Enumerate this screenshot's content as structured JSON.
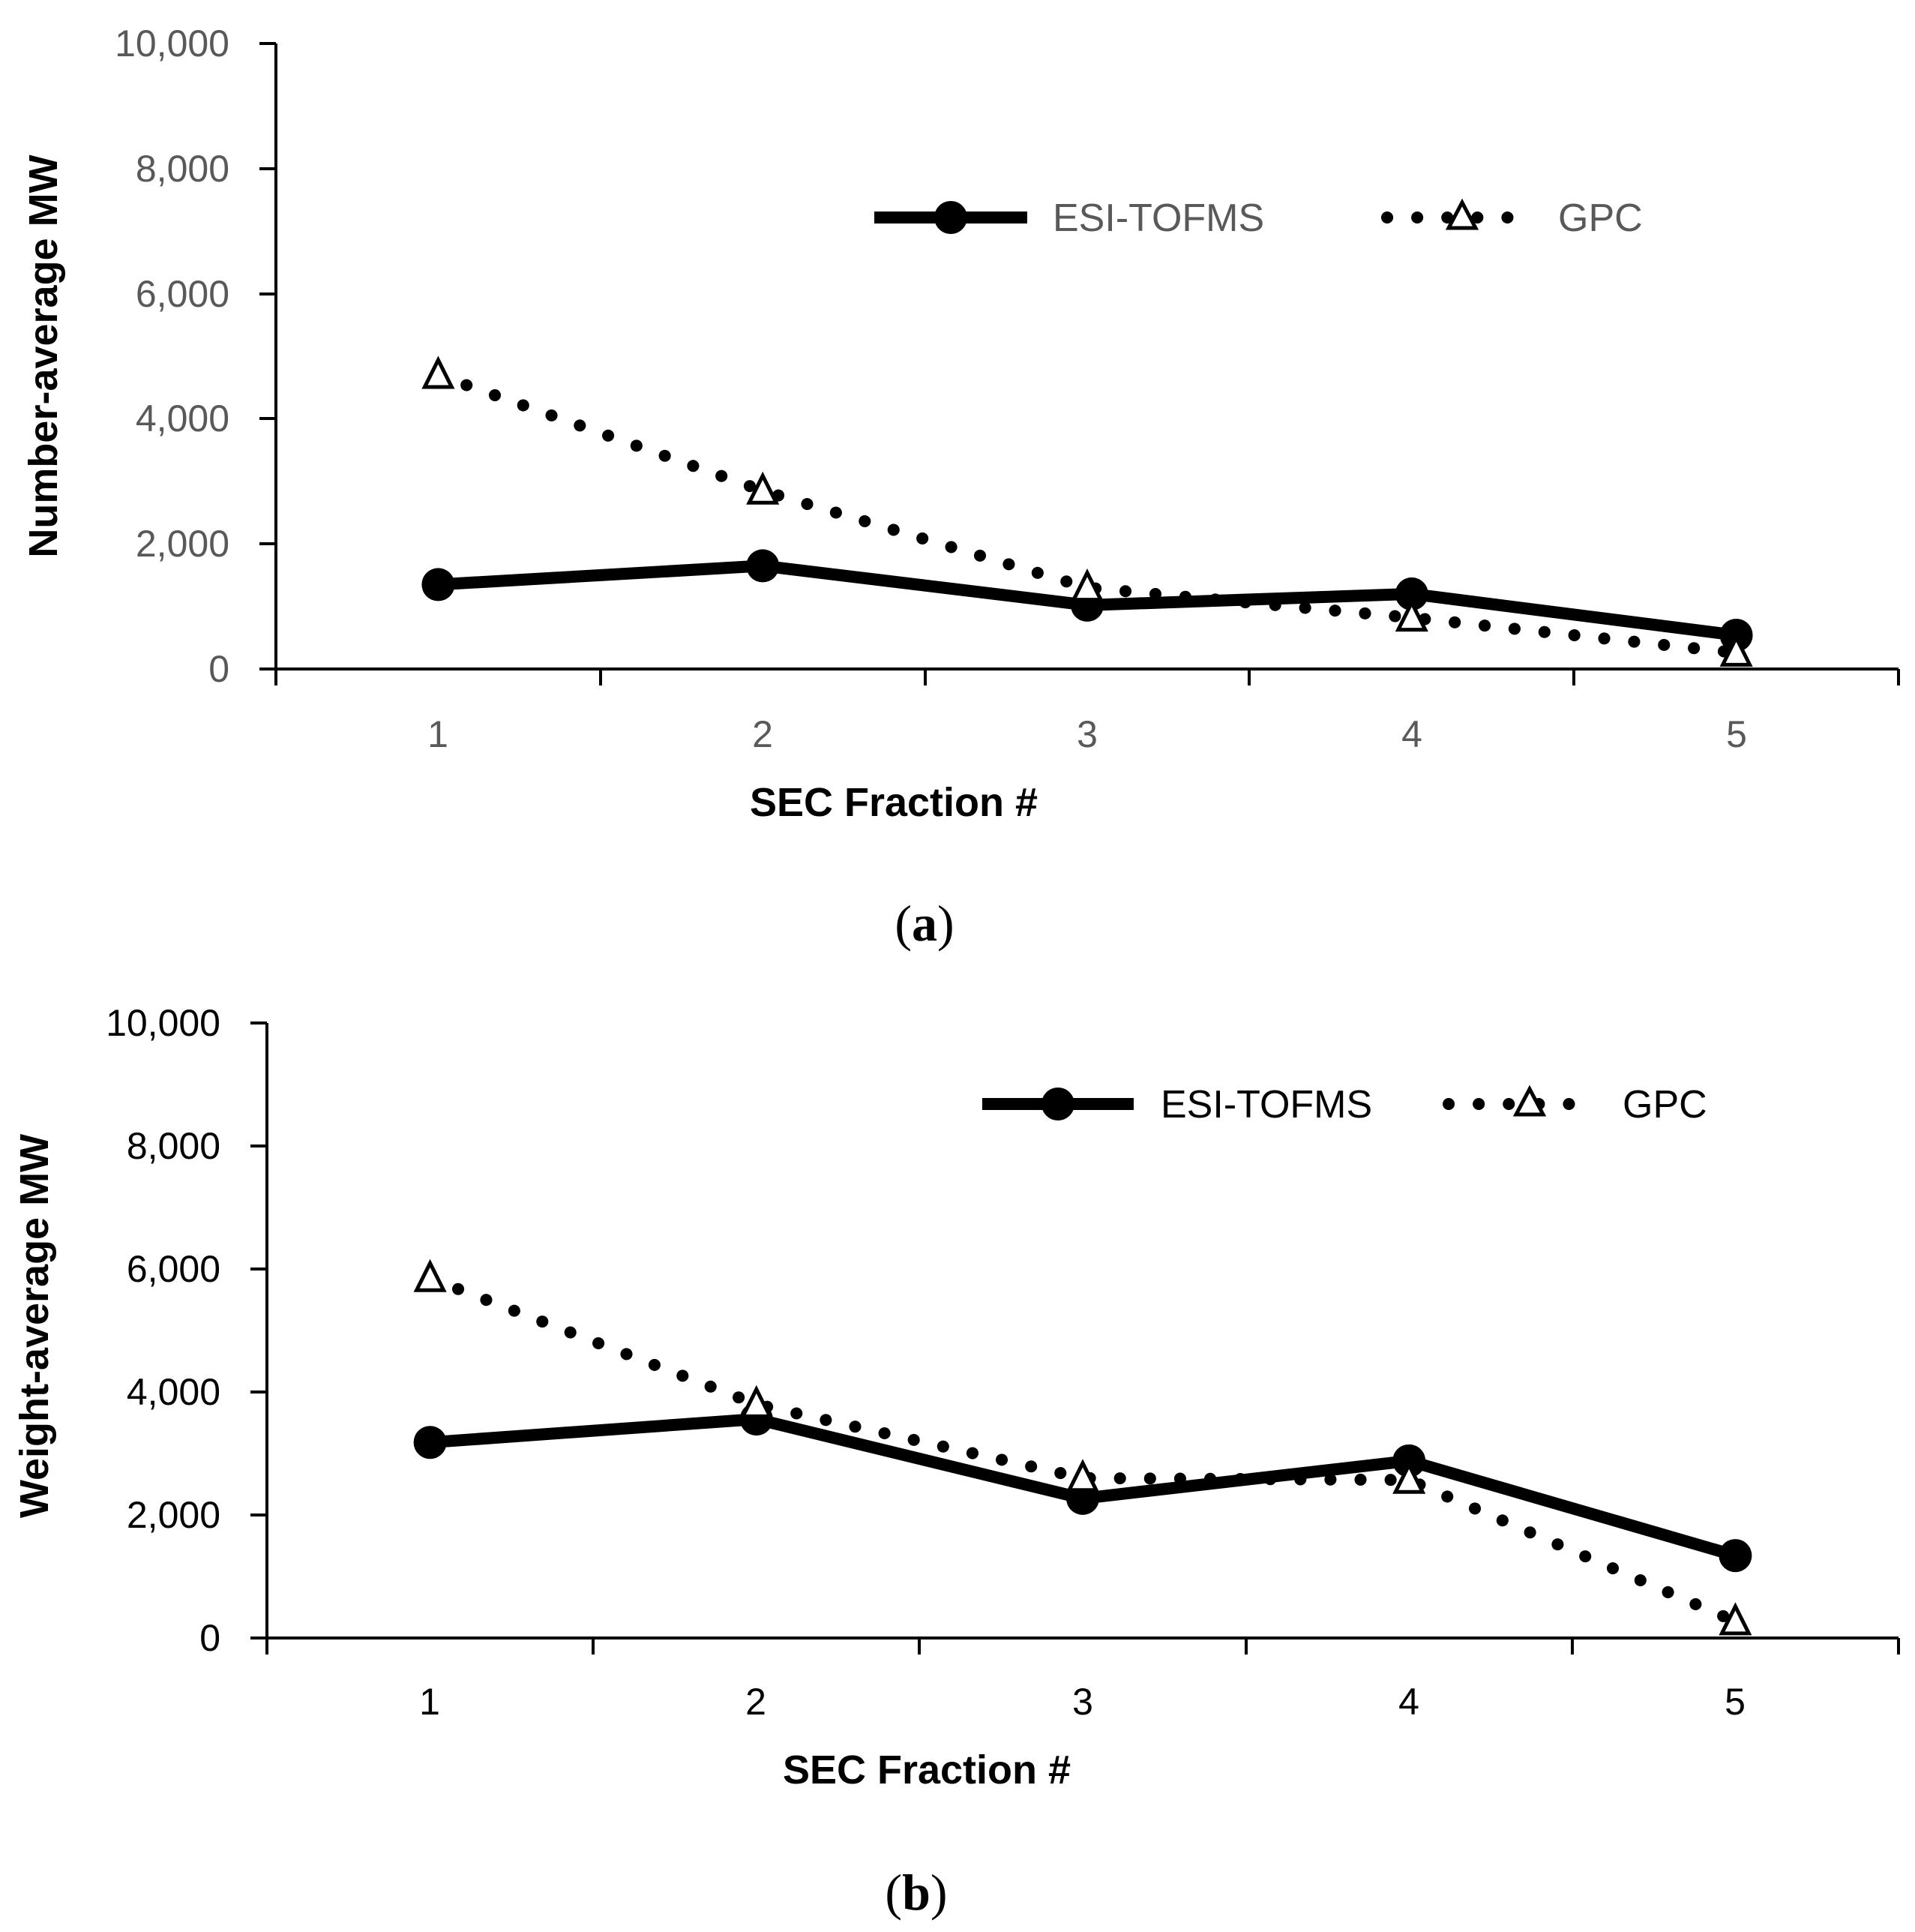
{
  "chart_data": [
    {
      "type": "line",
      "panel_label": "a",
      "title": "",
      "xlabel": "SEC Fraction #",
      "ylabel": "Number-average MW",
      "categories": [
        "1",
        "2",
        "3",
        "4",
        "5"
      ],
      "ylim": [
        0,
        10000
      ],
      "yticks": [
        0,
        2000,
        4000,
        6000,
        8000,
        10000
      ],
      "ytick_labels": [
        "0",
        "2,000",
        "4,000",
        "6,000",
        "8,000",
        "10,000"
      ],
      "series": [
        {
          "name": "ESI-TOFMS",
          "style": "solid",
          "marker": "circle",
          "values": [
            1350,
            1650,
            1020,
            1200,
            540
          ]
        },
        {
          "name": "GPC",
          "style": "dotted",
          "marker": "triangle",
          "values": [
            4700,
            2850,
            1300,
            820,
            260
          ]
        }
      ],
      "legend_position": "upper-right",
      "grid": false
    },
    {
      "type": "line",
      "panel_label": "b",
      "title": "",
      "xlabel": "SEC Fraction #",
      "ylabel": "Weight-average MW",
      "categories": [
        "1",
        "2",
        "3",
        "4",
        "5"
      ],
      "ylim": [
        0,
        10000
      ],
      "yticks": [
        0,
        2000,
        4000,
        6000,
        8000,
        10000
      ],
      "ytick_labels": [
        "0",
        "2,000",
        "4,000",
        "6,000",
        "8,000",
        "10,000"
      ],
      "series": [
        {
          "name": "ESI-TOFMS",
          "style": "solid",
          "marker": "circle",
          "values": [
            3180,
            3560,
            2270,
            2880,
            1340
          ]
        },
        {
          "name": "GPC",
          "style": "dotted",
          "marker": "triangle",
          "values": [
            5850,
            3800,
            2600,
            2570,
            270
          ]
        }
      ],
      "legend_position": "upper-right",
      "grid": false
    }
  ],
  "colors": {
    "line": "#000000",
    "tick_text_a": "#595959",
    "tick_text_b": "#000000"
  }
}
